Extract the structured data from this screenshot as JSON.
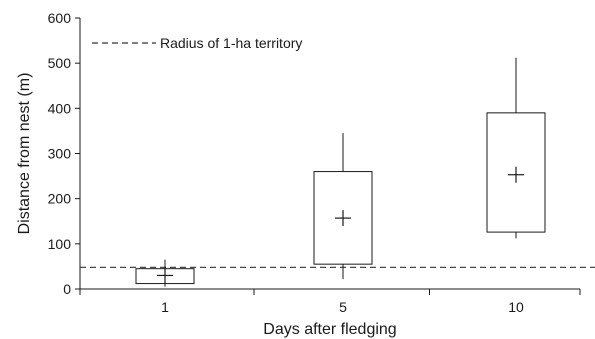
{
  "chart_data": {
    "type": "box",
    "xlabel": "Days after fledging",
    "ylabel": "Distance from nest (m)",
    "ylim": [
      0,
      600
    ],
    "yticks": [
      0,
      100,
      200,
      300,
      400,
      500,
      600
    ],
    "categories": [
      "1",
      "5",
      "10"
    ],
    "boxes": [
      {
        "category": "1",
        "whisker_low": 5,
        "q1": 12,
        "q3": 45,
        "whisker_high": 65,
        "mean": 30
      },
      {
        "category": "5",
        "whisker_low": 22,
        "q1": 55,
        "q3": 260,
        "whisker_high": 345,
        "mean": 157
      },
      {
        "category": "10",
        "whisker_low": 112,
        "q1": 126,
        "q3": 390,
        "whisker_high": 512,
        "mean": 253
      }
    ],
    "reference_line": {
      "value": 48,
      "style": "dashed",
      "label": "Radius of 1-ha territory"
    },
    "legend": {
      "position": "top-left",
      "entries": [
        "Radius of 1-ha territory"
      ]
    },
    "grid": false,
    "colors": {
      "axis": "#1a1a1a",
      "box": "#1a1a1a",
      "reference_line": "#333333"
    }
  }
}
